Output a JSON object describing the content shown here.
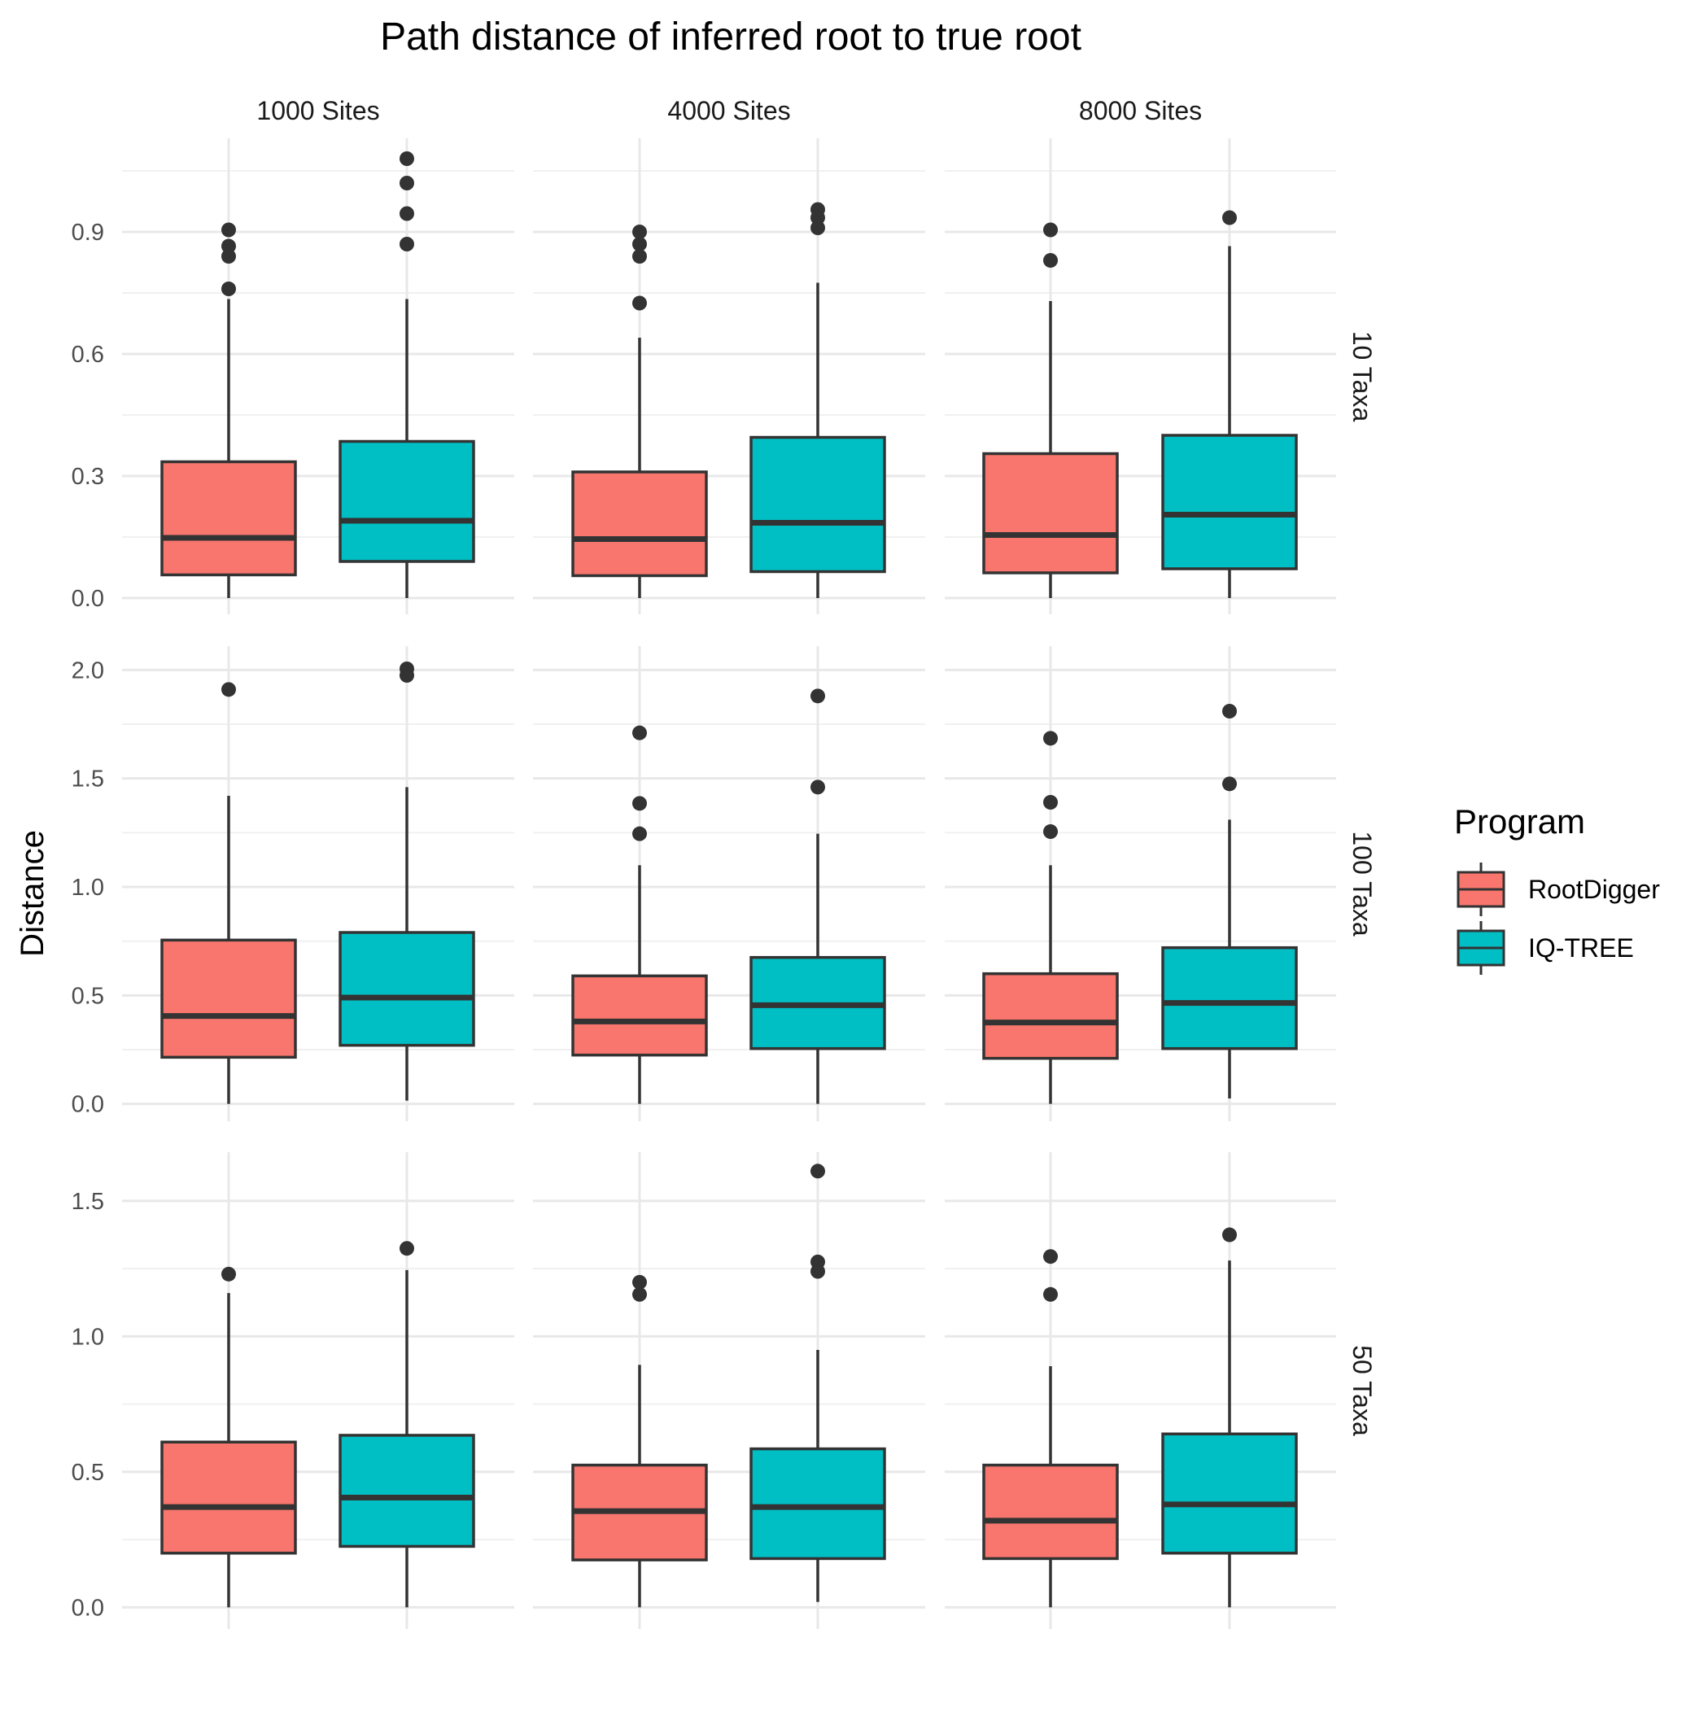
{
  "chart_data": {
    "type": "box",
    "title": "Path distance of inferred root to true root",
    "ylabel": "Distance",
    "xlabel": "",
    "columns": [
      "1000 Sites",
      "4000 Sites",
      "8000 Sites"
    ],
    "rows": [
      "10 Taxa",
      "100 Taxa",
      "50 Taxa"
    ],
    "legend": {
      "title": "Program",
      "placement": "right",
      "items": [
        {
          "name": "RootDigger",
          "color": "#F8766D"
        },
        {
          "name": "IQ-TREE",
          "color": "#00BFC4"
        }
      ]
    },
    "rows_axes": [
      {
        "ylim": [
          -0.04,
          1.13
        ],
        "ticks": [
          0.0,
          0.3,
          0.6,
          0.9
        ],
        "tick_labels": [
          "0.0",
          "0.3",
          "0.6",
          "0.9"
        ],
        "minor": [
          0.15,
          0.45,
          0.75,
          1.05
        ]
      },
      {
        "ylim": [
          -0.08,
          2.11
        ],
        "ticks": [
          0.0,
          0.5,
          1.0,
          1.5,
          2.0
        ],
        "tick_labels": [
          "0.0",
          "0.5",
          "1.0",
          "1.5",
          "2.0"
        ],
        "minor": [
          0.25,
          0.75,
          1.25,
          1.75
        ]
      },
      {
        "ylim": [
          -0.08,
          1.68
        ],
        "ticks": [
          0.0,
          0.5,
          1.0,
          1.5
        ],
        "tick_labels": [
          "0.0",
          "0.5",
          "1.0",
          "1.5"
        ],
        "minor": [
          0.25,
          0.75,
          1.25
        ]
      }
    ],
    "panels": [
      {
        "row": 0,
        "col": 0,
        "boxes": [
          {
            "series": "RootDigger",
            "min": 0.0,
            "q1": 0.057,
            "median": 0.148,
            "q3": 0.335,
            "max": 0.735,
            "outliers": [
              0.76,
              0.84,
              0.865,
              0.905
            ]
          },
          {
            "series": "IQ-TREE",
            "min": 0.0,
            "q1": 0.09,
            "median": 0.19,
            "q3": 0.385,
            "max": 0.735,
            "outliers": [
              0.87,
              0.945,
              1.02,
              1.08
            ]
          }
        ]
      },
      {
        "row": 0,
        "col": 1,
        "boxes": [
          {
            "series": "RootDigger",
            "min": 0.0,
            "q1": 0.055,
            "median": 0.145,
            "q3": 0.31,
            "max": 0.64,
            "outliers": [
              0.725,
              0.84,
              0.87,
              0.9
            ]
          },
          {
            "series": "IQ-TREE",
            "min": 0.0,
            "q1": 0.065,
            "median": 0.185,
            "q3": 0.395,
            "max": 0.775,
            "outliers": [
              0.91,
              0.935,
              0.955
            ]
          }
        ]
      },
      {
        "row": 0,
        "col": 2,
        "boxes": [
          {
            "series": "RootDigger",
            "min": 0.0,
            "q1": 0.062,
            "median": 0.155,
            "q3": 0.355,
            "max": 0.73,
            "outliers": [
              0.83,
              0.905
            ]
          },
          {
            "series": "IQ-TREE",
            "min": 0.0,
            "q1": 0.072,
            "median": 0.205,
            "q3": 0.4,
            "max": 0.865,
            "outliers": [
              0.935
            ]
          }
        ]
      },
      {
        "row": 1,
        "col": 0,
        "boxes": [
          {
            "series": "RootDigger",
            "min": 0.0,
            "q1": 0.215,
            "median": 0.405,
            "q3": 0.755,
            "max": 1.42,
            "outliers": [
              1.91
            ]
          },
          {
            "series": "IQ-TREE",
            "min": 0.015,
            "q1": 0.27,
            "median": 0.49,
            "q3": 0.79,
            "max": 1.46,
            "outliers": [
              1.975,
              2.005
            ]
          }
        ]
      },
      {
        "row": 1,
        "col": 1,
        "boxes": [
          {
            "series": "RootDigger",
            "min": 0.0,
            "q1": 0.225,
            "median": 0.38,
            "q3": 0.59,
            "max": 1.1,
            "outliers": [
              1.245,
              1.385,
              1.71
            ]
          },
          {
            "series": "IQ-TREE",
            "min": 0.0,
            "q1": 0.255,
            "median": 0.455,
            "q3": 0.675,
            "max": 1.245,
            "outliers": [
              1.46,
              1.88
            ]
          }
        ]
      },
      {
        "row": 1,
        "col": 2,
        "boxes": [
          {
            "series": "RootDigger",
            "min": 0.0,
            "q1": 0.21,
            "median": 0.375,
            "q3": 0.6,
            "max": 1.1,
            "outliers": [
              1.255,
              1.39,
              1.685
            ]
          },
          {
            "series": "IQ-TREE",
            "min": 0.025,
            "q1": 0.255,
            "median": 0.465,
            "q3": 0.72,
            "max": 1.31,
            "outliers": [
              1.475,
              1.81
            ]
          }
        ]
      },
      {
        "row": 2,
        "col": 0,
        "boxes": [
          {
            "series": "RootDigger",
            "min": 0.0,
            "q1": 0.2,
            "median": 0.37,
            "q3": 0.61,
            "max": 1.16,
            "outliers": [
              1.23
            ]
          },
          {
            "series": "IQ-TREE",
            "min": 0.0,
            "q1": 0.225,
            "median": 0.405,
            "q3": 0.635,
            "max": 1.245,
            "outliers": [
              1.325
            ]
          }
        ]
      },
      {
        "row": 2,
        "col": 1,
        "boxes": [
          {
            "series": "RootDigger",
            "min": 0.0,
            "q1": 0.175,
            "median": 0.355,
            "q3": 0.525,
            "max": 0.895,
            "outliers": [
              1.155,
              1.2
            ]
          },
          {
            "series": "IQ-TREE",
            "min": 0.02,
            "q1": 0.18,
            "median": 0.37,
            "q3": 0.585,
            "max": 0.95,
            "outliers": [
              1.24,
              1.275,
              1.61
            ]
          }
        ]
      },
      {
        "row": 2,
        "col": 2,
        "boxes": [
          {
            "series": "RootDigger",
            "min": 0.0,
            "q1": 0.18,
            "median": 0.32,
            "q3": 0.525,
            "max": 0.89,
            "outliers": [
              1.155,
              1.295
            ]
          },
          {
            "series": "IQ-TREE",
            "min": 0.0,
            "q1": 0.2,
            "median": 0.38,
            "q3": 0.64,
            "max": 1.28,
            "outliers": [
              1.375
            ]
          }
        ]
      }
    ]
  }
}
